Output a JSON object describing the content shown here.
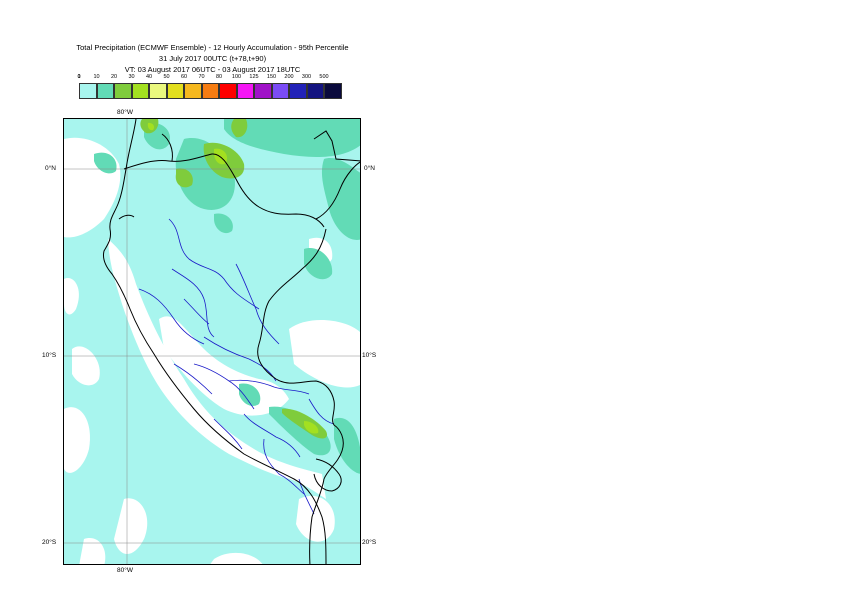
{
  "title": {
    "line1": "Total Precipitation (ECMWF Ensemble) - 12 Hourly Accumulation - 95th Percentile",
    "line2": "31 July 2017 00UTC (t+78,t+90)",
    "line3": "VT: 03 August 2017 06UTC - 03 August 2017 18UTC"
  },
  "legend": {
    "ticks": [
      "0",
      "1",
      "10",
      "20",
      "30",
      "40",
      "50",
      "60",
      "70",
      "80",
      "100",
      "125",
      "150",
      "200",
      "300",
      "500"
    ],
    "colors": [
      "#ffffff",
      "#a8f5ee",
      "#62dbb6",
      "#7fcc3c",
      "#a3e020",
      "#eaf87e",
      "#e3df1e",
      "#f5b81e",
      "#f57c12",
      "#ff0000",
      "#f516f5",
      "#a012c8",
      "#7b4cf5",
      "#2222b8",
      "#141480",
      "#0a0a3c"
    ]
  },
  "axes": {
    "top_lon": "80°W",
    "bottom_lon": "80°W",
    "lat_left": [
      "0°N",
      "10°S",
      "20°S"
    ],
    "lat_right": [
      "0°N",
      "10°S",
      "20°S"
    ]
  },
  "map_colors": {
    "light": "#a8f5ee",
    "medium": "#62dbb6",
    "green": "#7fcc3c",
    "yellow": "#a3e020",
    "border": "#000000",
    "region": "#1a1ac8",
    "grid": "#888888"
  }
}
